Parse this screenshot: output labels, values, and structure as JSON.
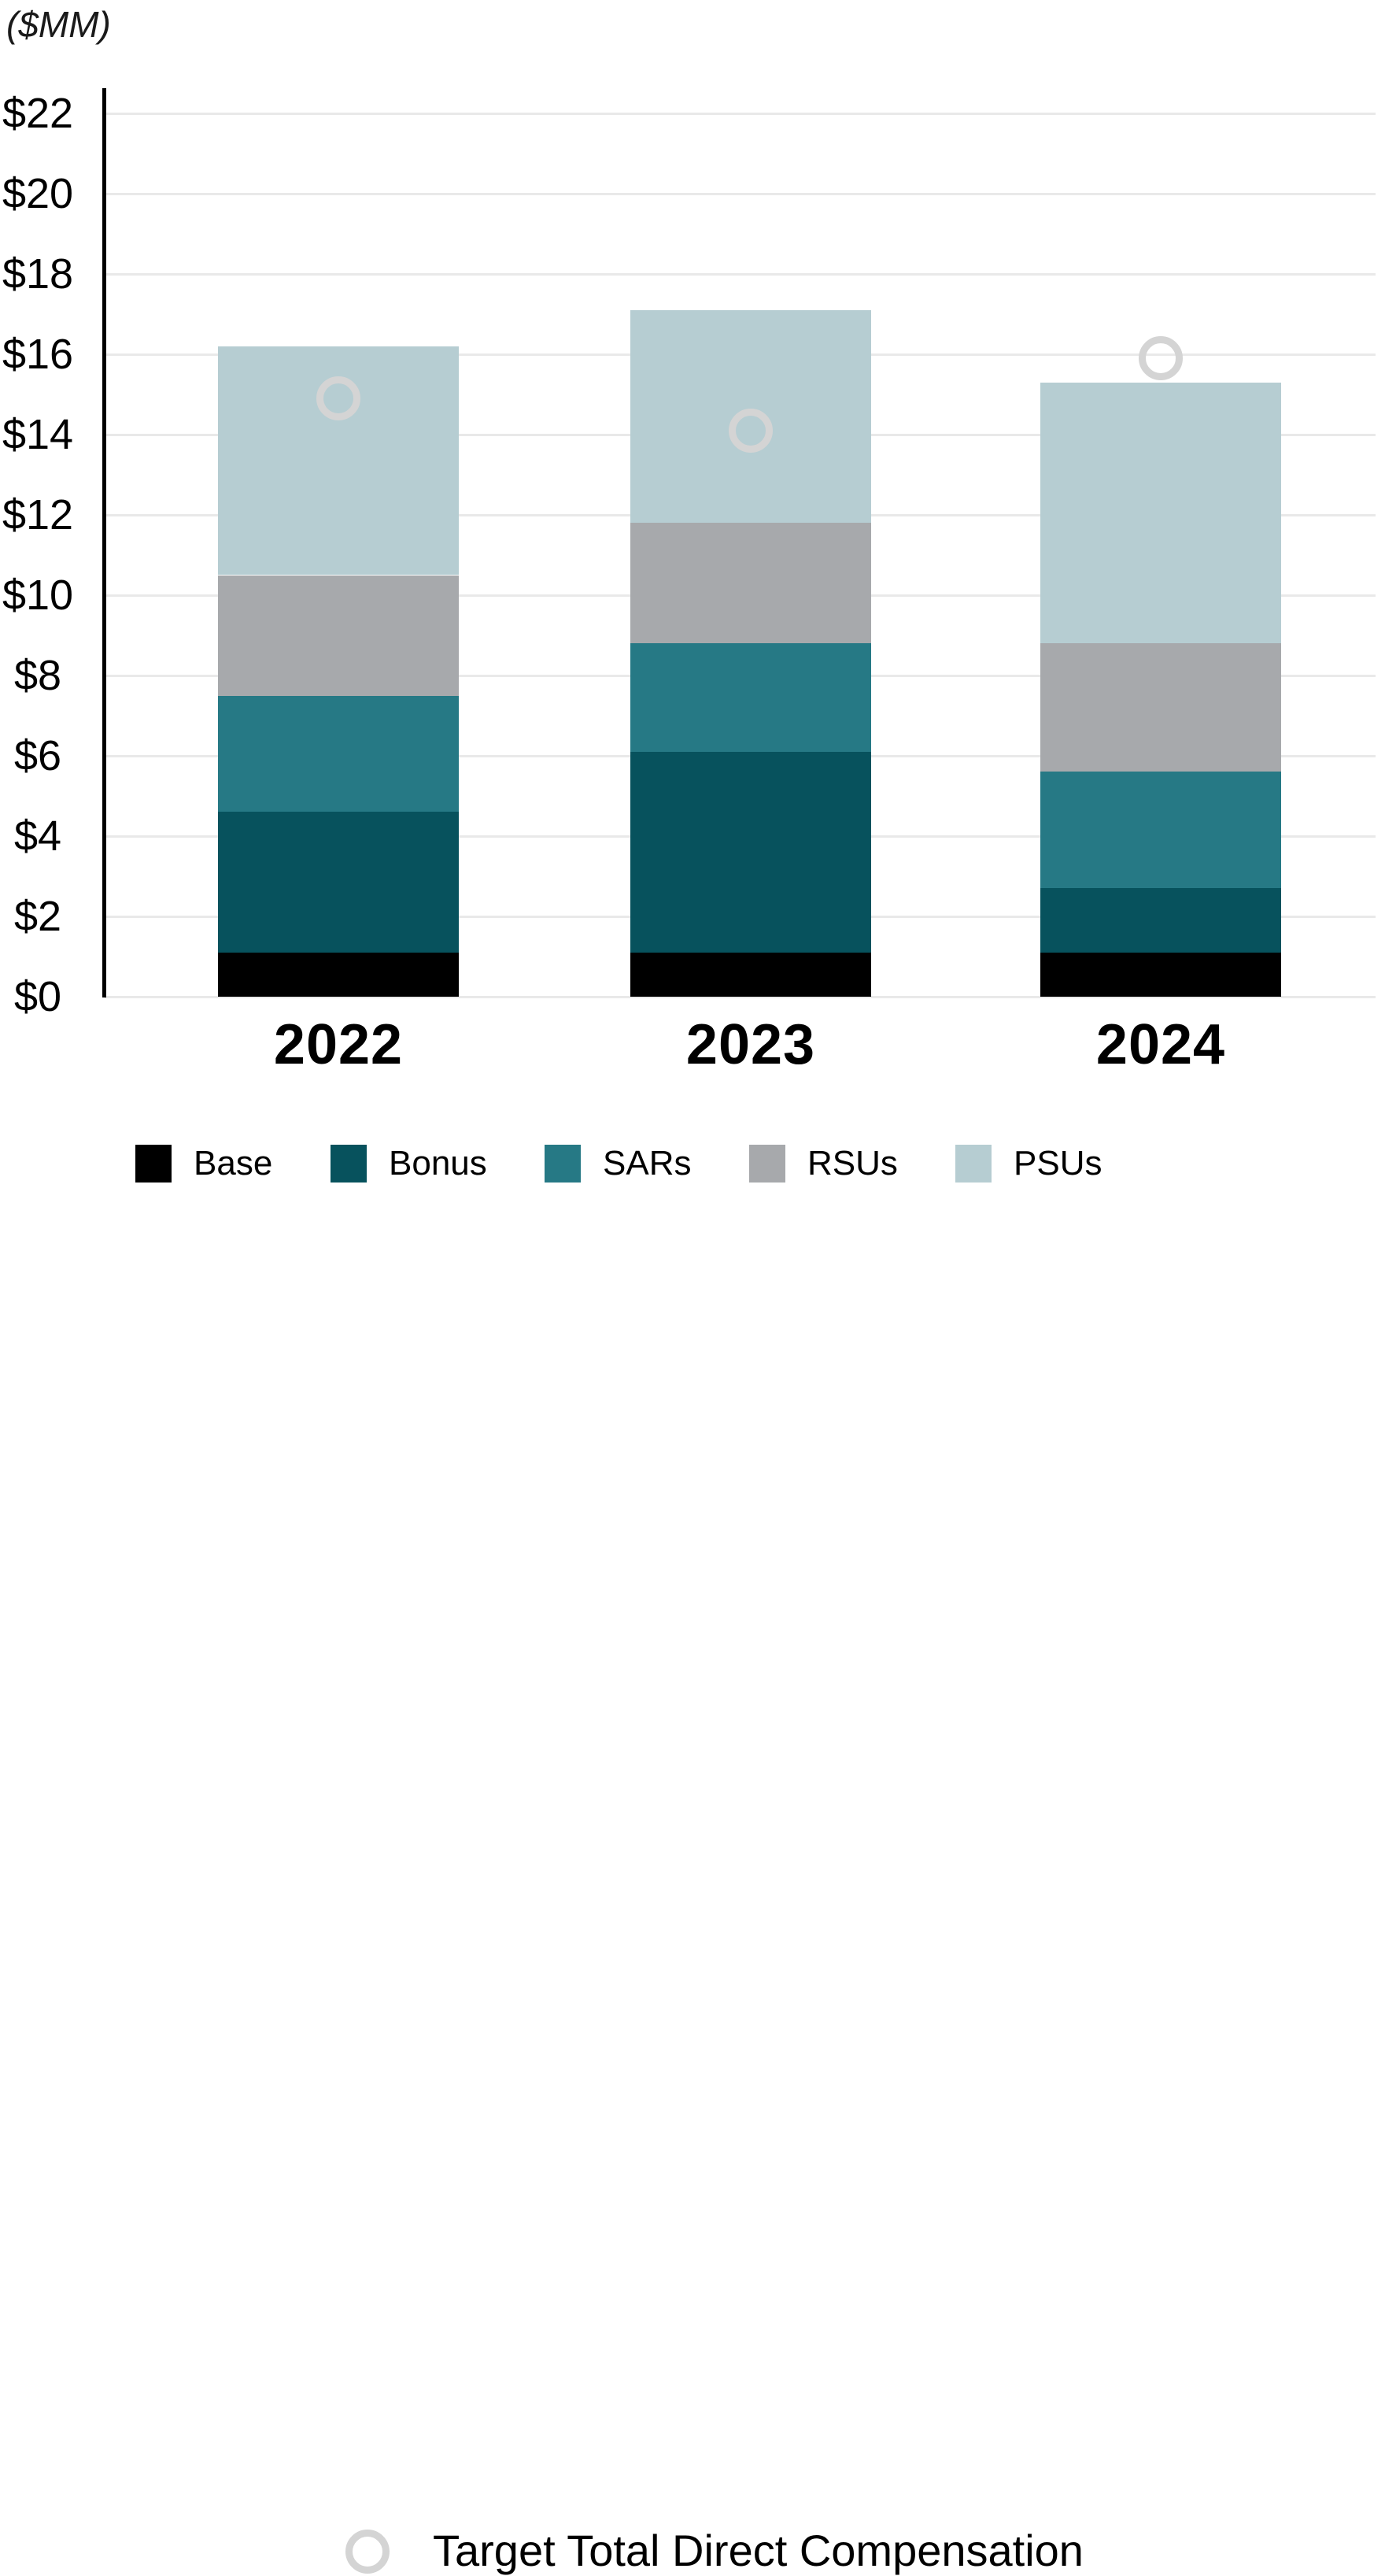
{
  "page": {
    "background": "#ffffff"
  },
  "chart_data": {
    "type": "bar",
    "stacked": true,
    "title": "($MM)",
    "categories": [
      "2022",
      "2023",
      "2024"
    ],
    "series": [
      {
        "name": "Base",
        "color": "#000000",
        "values": [
          1.1,
          1.1,
          1.1
        ]
      },
      {
        "name": "Bonus",
        "color": "#07525d",
        "values": [
          3.5,
          5.0,
          1.6
        ]
      },
      {
        "name": "SARs",
        "color": "#267985",
        "values": [
          2.9,
          2.7,
          2.9
        ]
      },
      {
        "name": "RSUs",
        "color": "#a7a9ac",
        "values": [
          3.0,
          3.0,
          3.2
        ]
      },
      {
        "name": "PSUs",
        "color": "#b6cdd2",
        "values": [
          5.7,
          5.3,
          6.5
        ]
      }
    ],
    "stack_totals": [
      16.2,
      17.1,
      15.3
    ],
    "marker_series": {
      "name": "Target Total Direct Compensation",
      "color": "#d4d4d4",
      "values": [
        14.9,
        14.1,
        15.9
      ]
    },
    "y_axis": {
      "ylim": [
        0,
        22
      ],
      "tick_step": 2,
      "tick_values": [
        0,
        2,
        4,
        6,
        8,
        10,
        12,
        14,
        16,
        18,
        20,
        22
      ],
      "tick_labels": [
        "$0",
        "$2",
        "$4",
        "$6",
        "$8",
        "$10",
        "$12",
        "$14",
        "$16",
        "$18",
        "$20",
        "$22"
      ],
      "grid": true,
      "grid_color": "#e9e9e9",
      "axis_color": "#000000"
    },
    "legend_position": "bottom",
    "marker_legend_position": "bottom"
  }
}
